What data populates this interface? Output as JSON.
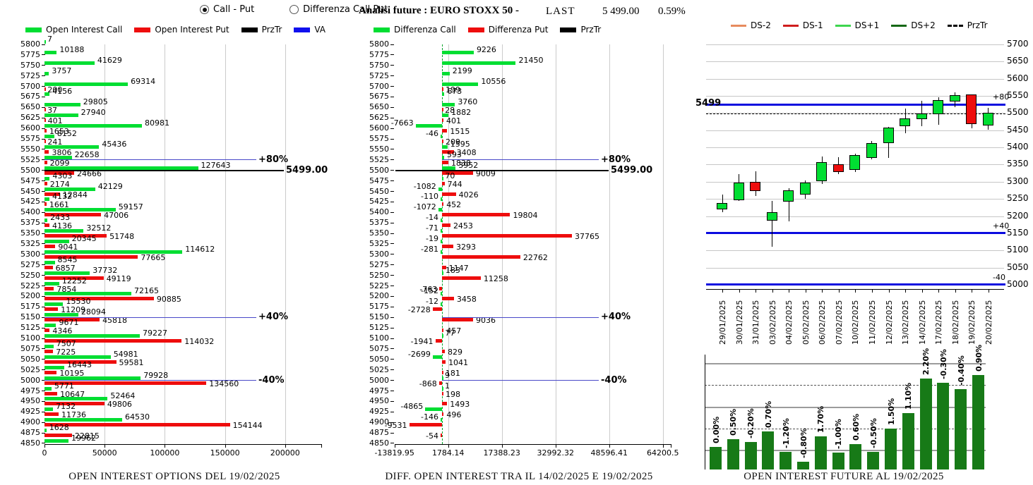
{
  "controls": {
    "radio_call_put": {
      "label": "Call - Put",
      "selected": true
    },
    "radio_differenza": {
      "label": "Differenza Call Put",
      "selected": false
    }
  },
  "header": {
    "analisi": "Analisi future : EURO STOXX 50 -",
    "last_label": "LAST",
    "last_value": "5 499.00",
    "last_change_pct": "0.59%"
  },
  "colors": {
    "call_green": "#00DE32",
    "put_red": "#EE0D0D",
    "prztr_black": "#000000",
    "va_blue": "#1010EE",
    "va_line_blue": "#4848C8",
    "candle_line_blue": "#0B0BDF",
    "future_bar_green": "#177A17",
    "grid_gray": "#CBCBCB"
  },
  "legends": {
    "left": [
      {
        "label": "Open Interest Call",
        "color": "#00DE32",
        "style": "rect"
      },
      {
        "label": "Open Interest Put",
        "color": "#EE0D0D",
        "style": "rect"
      },
      {
        "label": "PrzTr",
        "color": "#000000",
        "style": "rect"
      },
      {
        "label": "VA",
        "color": "#1010EE",
        "style": "rect"
      }
    ],
    "mid": [
      {
        "label": "Differenza Call",
        "color": "#00DE32",
        "style": "rect"
      },
      {
        "label": "Differenza Put",
        "color": "#EE0D0D",
        "style": "rect"
      },
      {
        "label": "PrzTr",
        "color": "#000000",
        "style": "rect"
      }
    ],
    "right": [
      {
        "label": "DS-2",
        "color": "#E78B5E",
        "style": "line"
      },
      {
        "label": "DS-1",
        "color": "#CF1D1D",
        "style": "line"
      },
      {
        "label": "DS+1",
        "color": "#3ED54E",
        "style": "line"
      },
      {
        "label": "DS+2",
        "color": "#156815",
        "style": "line"
      },
      {
        "label": "PrzTr",
        "color": "#000000",
        "style": "dashed"
      }
    ]
  },
  "chart_data": [
    {
      "id": "oi_options",
      "type": "bar",
      "orientation": "horizontal",
      "title": "OPEN INTEREST OPTIONS DEL 19/02/2025",
      "x_ticks": [
        {
          "label": "0",
          "value": 0,
          "grid": false
        },
        {
          "label": "50000",
          "value": 50000,
          "grid": true
        },
        {
          "label": "100000",
          "value": 100000,
          "grid": true
        },
        {
          "label": "150000",
          "value": 150000,
          "grid": true
        },
        {
          "label": "200000",
          "value": 200000,
          "grid": true
        }
      ],
      "strikes": [
        5800,
        5775,
        5750,
        5725,
        5700,
        5675,
        5650,
        5625,
        5600,
        5575,
        5550,
        5525,
        5500,
        5475,
        5450,
        5425,
        5400,
        5375,
        5350,
        5325,
        5300,
        5275,
        5250,
        5225,
        5200,
        5175,
        5150,
        5125,
        5100,
        5075,
        5050,
        5025,
        5000,
        4975,
        4950,
        4925,
        4900,
        4875,
        4850
      ],
      "series": [
        {
          "name": "Open Interest Call",
          "color": "#00DE32",
          "values": [
            7,
            10188,
            41629,
            3757,
            69314,
            4156,
            29805,
            27940,
            80981,
            8152,
            45436,
            22658,
            127643,
            4303,
            42129,
            4132,
            59157,
            2433,
            32512,
            20345,
            114612,
            8545,
            37732,
            12252,
            72165,
            15530,
            28094,
            9671,
            79227,
            7507,
            54981,
            16443,
            79928,
            5771,
            52464,
            7132,
            64530,
            1628,
            19962
          ]
        },
        {
          "name": "Open Interest Put",
          "color": "#EE0D0D",
          "values": [
            null,
            null,
            null,
            null,
            200,
            null,
            37,
            401,
            1653,
            241,
            3806,
            2099,
            24666,
            2174,
            12844,
            1661,
            47006,
            4136,
            51748,
            9041,
            77665,
            6857,
            49119,
            7854,
            90885,
            11209,
            45818,
            4346,
            114032,
            7225,
            59581,
            10195,
            134560,
            10647,
            49806,
            11736,
            154144,
            22815,
            null
          ]
        }
      ],
      "levels": [
        {
          "label": "+80%",
          "strike": 5525,
          "kind": "va"
        },
        {
          "label": "5499.00",
          "strike": 5500,
          "kind": "prz"
        },
        {
          "label": "+40%",
          "strike": 5150,
          "kind": "va"
        },
        {
          "label": "-40%",
          "strike": 5000,
          "kind": "va"
        }
      ]
    },
    {
      "id": "oi_diff",
      "type": "bar",
      "orientation": "horizontal",
      "title": "DIFF. OPEN INTEREST TRA IL 14/02/2025 E 19/02/2025",
      "x_ticks": [
        {
          "label": "-13819.95",
          "value": -13819.95,
          "grid": false
        },
        {
          "label": "1784.14",
          "value": 1784.14,
          "grid": true
        },
        {
          "label": "17388.23",
          "value": 17388.23,
          "grid": true
        },
        {
          "label": "32992.32",
          "value": 32992.32,
          "grid": true
        },
        {
          "label": "48596.41",
          "value": 48596.41,
          "grid": true
        },
        {
          "label": "64200.5",
          "value": 64200.5,
          "grid": true
        }
      ],
      "strikes": [
        5800,
        5775,
        5750,
        5725,
        5700,
        5675,
        5650,
        5625,
        5600,
        5575,
        5550,
        5525,
        5500,
        5475,
        5450,
        5425,
        5400,
        5375,
        5350,
        5325,
        5300,
        5275,
        5250,
        5225,
        5200,
        5175,
        5150,
        5125,
        5100,
        5075,
        5050,
        5025,
        5000,
        4975,
        4950,
        4925,
        4900,
        4875,
        4850
      ],
      "series": [
        {
          "name": "Differenza Call",
          "color": "#00DE32",
          "values": [
            null,
            9226,
            21450,
            2199,
            10556,
            673,
            3760,
            1882,
            -7663,
            -46,
            1595,
            593,
            3952,
            70,
            -1082,
            -110,
            -1072,
            -14,
            -71,
            -19,
            -281,
            null,
            185,
            null,
            -152,
            -12,
            null,
            null,
            77,
            null,
            -2699,
            null,
            9,
            1,
            null,
            -4865,
            -146,
            null,
            null
          ]
        },
        {
          "name": "Differenza Put",
          "color": "#EE0D0D",
          "values": [
            null,
            null,
            null,
            null,
            199,
            null,
            28,
            401,
            1515,
            209,
            3408,
            1838,
            9009,
            744,
            4026,
            452,
            19804,
            2453,
            37765,
            3293,
            22762,
            1147,
            11258,
            -763,
            3458,
            -2728,
            9036,
            457,
            -1941,
            829,
            1041,
            181,
            -868,
            198,
            1493,
            496,
            -9531,
            -54,
            null
          ]
        }
      ],
      "levels": [
        {
          "label": "+80%",
          "strike": 5525,
          "kind": "va"
        },
        {
          "label": "5499.00",
          "strike": 5500,
          "kind": "prz"
        },
        {
          "label": "+40%",
          "strike": 5150,
          "kind": "va"
        },
        {
          "label": "-40%",
          "strike": 5000,
          "kind": "va"
        }
      ]
    },
    {
      "id": "future_candles",
      "type": "candlestick",
      "dates": [
        "29/01/2025",
        "30/01/2025",
        "31/01/2025",
        "03/02/2025",
        "04/02/2025",
        "05/02/2025",
        "06/02/2025",
        "07/02/2025",
        "10/02/2025",
        "11/02/2025",
        "12/02/2025",
        "13/02/2025",
        "14/02/2025",
        "17/02/2025",
        "18/02/2025",
        "19/02/2025",
        "20/02/2025"
      ],
      "ohlc": [
        [
          5219,
          5263,
          5212,
          5239
        ],
        [
          5246,
          5323,
          5244,
          5297
        ],
        [
          5299,
          5331,
          5259,
          5273
        ],
        [
          5186,
          5245,
          5111,
          5212
        ],
        [
          5242,
          5282,
          5184,
          5276
        ],
        [
          5263,
          5304,
          5250,
          5298
        ],
        [
          5302,
          5374,
          5294,
          5357
        ],
        [
          5352,
          5371,
          5323,
          5328
        ],
        [
          5334,
          5382,
          5328,
          5378
        ],
        [
          5369,
          5418,
          5366,
          5413
        ],
        [
          5412,
          5459,
          5369,
          5458
        ],
        [
          5462,
          5513,
          5441,
          5484
        ],
        [
          5482,
          5535,
          5462,
          5499
        ],
        [
          5496,
          5547,
          5465,
          5537
        ],
        [
          5533,
          5561,
          5517,
          5552
        ],
        [
          5554,
          5554,
          5455,
          5467
        ],
        [
          5464,
          5516,
          5452,
          5500
        ]
      ],
      "y_ticks": [
        5700,
        5650,
        5600,
        5550,
        5500,
        5450,
        5400,
        5350,
        5300,
        5250,
        5200,
        5150,
        5100,
        5050,
        5000
      ],
      "levels": [
        {
          "label": "+80",
          "value": 5525
        },
        {
          "label": "+40",
          "value": 5150
        },
        {
          "label": "-40",
          "value": 5000
        }
      ],
      "prztr": {
        "label": "5499",
        "value": 5499
      },
      "up_color": "#00DE32",
      "down_color": "#EE0D0D"
    },
    {
      "id": "oi_future",
      "type": "bar",
      "title": "OPEN INTEREST FUTURE AL 19/02/2025",
      "labels": [
        "0.00%",
        "0.50%",
        "-0.20%",
        "0.70%",
        "-1.20%",
        "-0.80%",
        "1.70%",
        "-1.00%",
        "0.60%",
        "-0.50%",
        "1.50%",
        "1.10%",
        "2.20%",
        "-0.30%",
        "-0.40%",
        "0.90%"
      ],
      "relative_heights": [
        0.24,
        0.32,
        0.29,
        0.4,
        0.19,
        0.08,
        0.35,
        0.18,
        0.27,
        0.19,
        0.43,
        0.6,
        0.96,
        0.92,
        0.85,
        1.0
      ],
      "bar_color": "#177A17"
    }
  ]
}
